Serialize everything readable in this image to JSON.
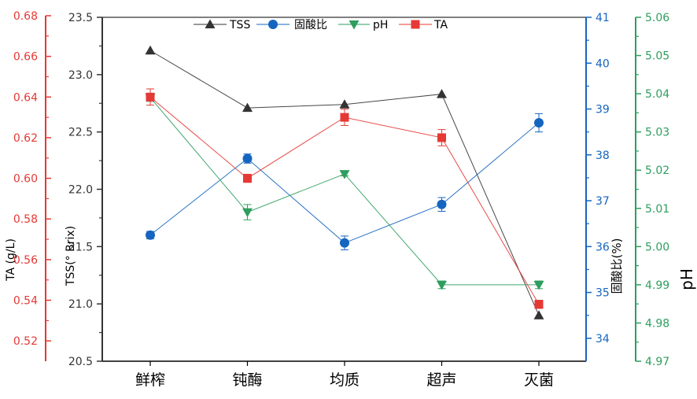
{
  "chart_data": {
    "type": "line",
    "categories": [
      "鲜榨",
      "钝酶",
      "均质",
      "超声",
      "灭菌"
    ],
    "legend": {
      "placement": "top-center",
      "entries": [
        "TSS",
        "固酸比",
        "pH",
        "TA"
      ]
    },
    "series": [
      {
        "name": "TSS",
        "axis": "TSS",
        "color": "#333333",
        "marker": "triangle-up",
        "values": [
          23.21,
          22.71,
          22.74,
          22.83,
          20.9
        ],
        "errors": [
          0,
          0,
          0,
          0,
          0
        ]
      },
      {
        "name": "固酸比",
        "axis": "ratio",
        "color": "#1565C0",
        "marker": "circle",
        "values": [
          36.25,
          37.92,
          36.08,
          36.92,
          38.7
        ],
        "errors": [
          0.08,
          0.1,
          0.15,
          0.15,
          0.2
        ]
      },
      {
        "name": "pH",
        "axis": "pH",
        "color": "#2E9E5E",
        "marker": "triangle-down",
        "values": [
          5.039,
          5.009,
          5.019,
          4.99,
          4.99
        ],
        "errors": [
          0.001,
          0.002,
          0.0005,
          0.001,
          0.001
        ]
      },
      {
        "name": "TA",
        "axis": "TA",
        "color": "#E53935",
        "marker": "square",
        "values": [
          0.64,
          0.6,
          0.63,
          0.62,
          0.538
        ],
        "errors": [
          0.004,
          0.002,
          0.004,
          0.004,
          0.002
        ]
      }
    ],
    "axes": {
      "TA": {
        "label": "TA (g/L)",
        "color": "#E53935",
        "range": [
          0.51,
          0.68
        ],
        "ticks": [
          "0.52",
          "0.54",
          "0.56",
          "0.58",
          "0.60",
          "0.62",
          "0.64",
          "0.66",
          "0.68"
        ]
      },
      "TSS": {
        "label": "TSS(° Brix)",
        "color": "#333333",
        "range": [
          20.5,
          23.5
        ],
        "ticks": [
          "20.5",
          "21.0",
          "21.5",
          "22.0",
          "22.5",
          "23.0",
          "23.5"
        ]
      },
      "ratio": {
        "label": "固酸比(%)",
        "color": "#1565C0",
        "range": [
          33.5,
          41
        ],
        "ticks": [
          "34",
          "35",
          "36",
          "37",
          "38",
          "39",
          "40",
          "41"
        ]
      },
      "pH": {
        "label": "pH",
        "color": "#2E9E5E",
        "range": [
          4.97,
          5.06
        ],
        "ticks": [
          "4.97",
          "4.98",
          "4.99",
          "5.00",
          "5.01",
          "5.02",
          "5.03",
          "5.04",
          "5.05",
          "5.06"
        ]
      }
    },
    "grid": false
  }
}
